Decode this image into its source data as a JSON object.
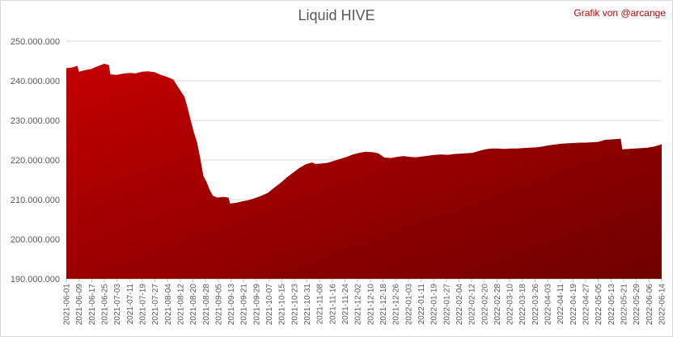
{
  "credit": "Grafik von @arcange",
  "chart_data": {
    "type": "area",
    "title": "Liquid HIVE",
    "xlabel": "",
    "ylabel": "",
    "ylim": [
      190000000,
      250000000
    ],
    "yticks": [
      190000000,
      200000000,
      210000000,
      220000000,
      230000000,
      240000000,
      250000000
    ],
    "ytick_labels": [
      "190.000.000",
      "200.000.000",
      "210.000.000",
      "220.000.000",
      "230.000.000",
      "240.000.000",
      "250.000.000"
    ],
    "grid": true,
    "legend": "none",
    "fill_gradient": [
      "#c40000",
      "#6e0000"
    ],
    "x_tick_labels": [
      "2021-06-01",
      "2021-06-09",
      "2021-06-17",
      "2021-06-25",
      "2021-07-03",
      "2021-07-11",
      "2021-07-19",
      "2021-07-27",
      "2021-08-04",
      "2021-08-12",
      "2021-08-20",
      "2021-08-28",
      "2021-09-05",
      "2021-09-13",
      "2021-09-21",
      "2021-09-29",
      "2021-10-07",
      "2021-10-15",
      "2021-10-23",
      "2021-10-31",
      "2021-11-08",
      "2021-11-16",
      "2021-11-24",
      "2021-12-02",
      "2021-12-10",
      "2021-12-18",
      "2021-12-26",
      "2022-01-03",
      "2022-01-11",
      "2022-01-19",
      "2022-01-27",
      "2022-02-04",
      "2022-02-12",
      "2022-02-20",
      "2022-02-28",
      "2022-03-10",
      "2022-03-18",
      "2022-03-26",
      "2022-04-03",
      "2022-04-11",
      "2022-04-19",
      "2022-04-27",
      "2022-05-05",
      "2022-05-13",
      "2022-05-21",
      "2022-05-29",
      "2022-06-06",
      "2022-06-14"
    ],
    "x_start": "2021-06-01",
    "x_end": "2022-06-14",
    "points": [
      [
        "2021-06-01",
        243200000
      ],
      [
        "2021-06-05",
        243400000
      ],
      [
        "2021-06-08",
        243800000
      ],
      [
        "2021-06-09",
        242300000
      ],
      [
        "2021-06-13",
        242700000
      ],
      [
        "2021-06-17",
        243000000
      ],
      [
        "2021-06-21",
        243700000
      ],
      [
        "2021-06-25",
        244300000
      ],
      [
        "2021-06-28",
        244000000
      ],
      [
        "2021-06-29",
        241600000
      ],
      [
        "2021-07-03",
        241500000
      ],
      [
        "2021-07-07",
        241800000
      ],
      [
        "2021-07-11",
        242000000
      ],
      [
        "2021-07-15",
        241900000
      ],
      [
        "2021-07-19",
        242300000
      ],
      [
        "2021-07-23",
        242400000
      ],
      [
        "2021-07-27",
        242200000
      ],
      [
        "2021-07-31",
        241500000
      ],
      [
        "2021-08-04",
        241000000
      ],
      [
        "2021-08-08",
        240300000
      ],
      [
        "2021-08-10",
        239000000
      ],
      [
        "2021-08-13",
        237200000
      ],
      [
        "2021-08-15",
        236000000
      ],
      [
        "2021-08-17",
        233200000
      ],
      [
        "2021-08-19",
        230000000
      ],
      [
        "2021-08-21",
        227000000
      ],
      [
        "2021-08-23",
        224500000
      ],
      [
        "2021-08-25",
        220500000
      ],
      [
        "2021-08-27",
        216000000
      ],
      [
        "2021-08-29",
        214500000
      ],
      [
        "2021-08-31",
        212500000
      ],
      [
        "2021-09-02",
        211000000
      ],
      [
        "2021-09-05",
        210500000
      ],
      [
        "2021-09-09",
        210700000
      ],
      [
        "2021-09-12",
        210500000
      ],
      [
        "2021-09-13",
        209000000
      ],
      [
        "2021-09-17",
        209200000
      ],
      [
        "2021-09-21",
        209600000
      ],
      [
        "2021-09-25",
        209900000
      ],
      [
        "2021-09-29",
        210400000
      ],
      [
        "2021-10-03",
        211000000
      ],
      [
        "2021-10-07",
        211700000
      ],
      [
        "2021-10-11",
        213000000
      ],
      [
        "2021-10-15",
        214200000
      ],
      [
        "2021-10-19",
        215600000
      ],
      [
        "2021-10-23",
        216800000
      ],
      [
        "2021-10-27",
        218000000
      ],
      [
        "2021-10-31",
        218900000
      ],
      [
        "2021-11-04",
        219400000
      ],
      [
        "2021-11-06",
        219000000
      ],
      [
        "2021-11-10",
        219100000
      ],
      [
        "2021-11-14",
        219300000
      ],
      [
        "2021-11-18",
        219800000
      ],
      [
        "2021-11-22",
        220300000
      ],
      [
        "2021-11-26",
        220800000
      ],
      [
        "2021-11-30",
        221400000
      ],
      [
        "2021-12-04",
        221800000
      ],
      [
        "2021-12-08",
        222100000
      ],
      [
        "2021-12-12",
        222000000
      ],
      [
        "2021-12-16",
        221700000
      ],
      [
        "2021-12-20",
        220600000
      ],
      [
        "2021-12-24",
        220500000
      ],
      [
        "2021-12-28",
        220800000
      ],
      [
        "2022-01-01",
        221000000
      ],
      [
        "2022-01-05",
        220800000
      ],
      [
        "2022-01-09",
        220700000
      ],
      [
        "2022-01-13",
        220900000
      ],
      [
        "2022-01-17",
        221100000
      ],
      [
        "2022-01-21",
        221300000
      ],
      [
        "2022-01-25",
        221400000
      ],
      [
        "2022-01-29",
        221300000
      ],
      [
        "2022-02-02",
        221500000
      ],
      [
        "2022-02-06",
        221600000
      ],
      [
        "2022-02-10",
        221700000
      ],
      [
        "2022-02-14",
        221800000
      ],
      [
        "2022-02-18",
        222300000
      ],
      [
        "2022-02-22",
        222700000
      ],
      [
        "2022-02-26",
        222900000
      ],
      [
        "2022-03-02",
        222900000
      ],
      [
        "2022-03-06",
        222800000
      ],
      [
        "2022-03-10",
        222900000
      ],
      [
        "2022-03-14",
        222900000
      ],
      [
        "2022-03-18",
        223000000
      ],
      [
        "2022-03-22",
        223100000
      ],
      [
        "2022-03-26",
        223200000
      ],
      [
        "2022-03-30",
        223400000
      ],
      [
        "2022-04-03",
        223700000
      ],
      [
        "2022-04-07",
        223900000
      ],
      [
        "2022-04-11",
        224100000
      ],
      [
        "2022-04-15",
        224200000
      ],
      [
        "2022-04-19",
        224300000
      ],
      [
        "2022-04-23",
        224400000
      ],
      [
        "2022-04-27",
        224400000
      ],
      [
        "2022-05-01",
        224500000
      ],
      [
        "2022-05-05",
        224600000
      ],
      [
        "2022-05-09",
        225100000
      ],
      [
        "2022-05-13",
        225200000
      ],
      [
        "2022-05-17",
        225300000
      ],
      [
        "2022-05-19",
        225400000
      ],
      [
        "2022-05-20",
        222700000
      ],
      [
        "2022-05-24",
        222800000
      ],
      [
        "2022-05-28",
        222900000
      ],
      [
        "2022-06-01",
        223000000
      ],
      [
        "2022-06-05",
        223100000
      ],
      [
        "2022-06-09",
        223400000
      ],
      [
        "2022-06-12",
        223700000
      ],
      [
        "2022-06-14",
        224000000
      ]
    ]
  }
}
